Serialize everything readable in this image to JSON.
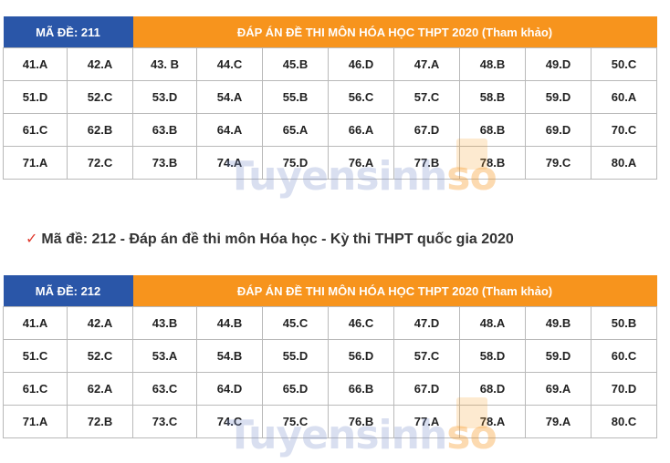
{
  "watermark": {
    "text_main": "Tuyensinh",
    "text_accent": "so"
  },
  "heading": "Mã đề: 212 - Đáp án đề thi môn Hóa học - Kỳ thi THPT quốc gia 2020",
  "tables": [
    {
      "code": "MÃ ĐỀ: 211",
      "title": "ĐÁP ÁN ĐỀ THI MÔN HÓA HỌC THPT 2020 (Tham khảo)",
      "rows": [
        [
          "41.A",
          "42.A",
          "43. B",
          "44.C",
          "45.B",
          "46.D",
          "47.A",
          "48.B",
          "49.D",
          "50.C"
        ],
        [
          "51.D",
          "52.C",
          "53.D",
          "54.A",
          "55.B",
          "56.C",
          "57.C",
          "58.B",
          "59.D",
          "60.A"
        ],
        [
          "61.C",
          "62.B",
          "63.B",
          "64.A",
          "65.A",
          "66.A",
          "67.D",
          "68.B",
          "69.D",
          "70.C"
        ],
        [
          "71.A",
          "72.C",
          "73.B",
          "74.A",
          "75.D",
          "76.A",
          "77.B",
          "78.B",
          "79.C",
          "80.A"
        ]
      ]
    },
    {
      "code": "MÃ ĐỀ: 212",
      "title": "ĐÁP ÁN ĐỀ THI MÔN HÓA HỌC THPT 2020 (Tham khảo)",
      "rows": [
        [
          "41.A",
          "42.A",
          "43.B",
          "44.B",
          "45.C",
          "46.C",
          "47.D",
          "48.A",
          "49.B",
          "50.B"
        ],
        [
          "51.C",
          "52.C",
          "53.A",
          "54.B",
          "55.D",
          "56.D",
          "57.C",
          "58.D",
          "59.D",
          "60.C"
        ],
        [
          "61.C",
          "62.A",
          "63.C",
          "64.D",
          "65.D",
          "66.B",
          "67.D",
          "68.D",
          "69.A",
          "70.D"
        ],
        [
          "71.A",
          "72.B",
          "73.C",
          "74.C",
          "75.C",
          "76.B",
          "77.A",
          "78.A",
          "79.A",
          "80.C"
        ]
      ]
    }
  ]
}
